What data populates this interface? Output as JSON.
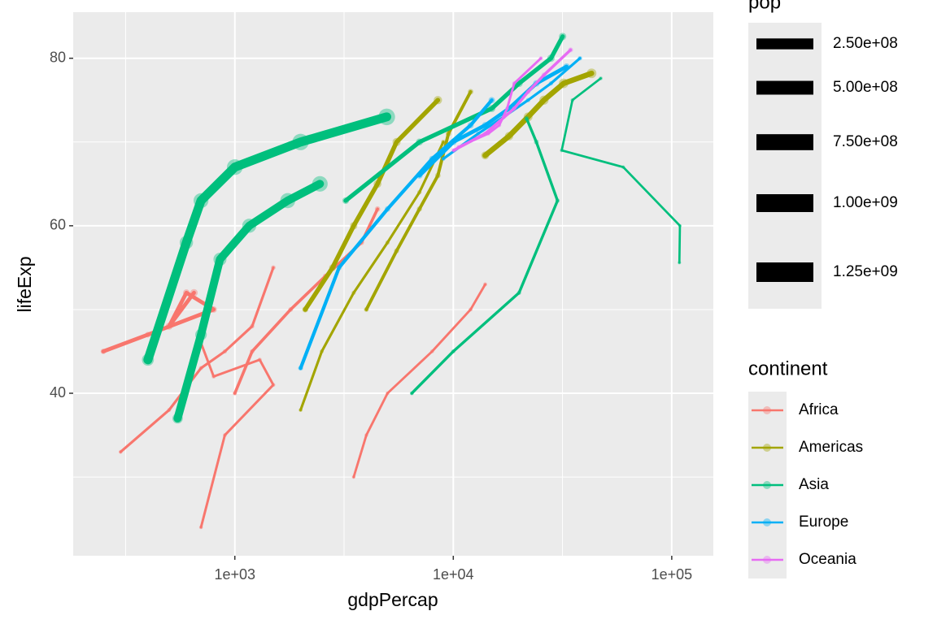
{
  "chart_data": {
    "type": "line",
    "x_label": "gdpPercap",
    "y_label": "lifeExp",
    "xlog": true,
    "grid": true,
    "xlim": [
      182,
      155000
    ],
    "ylim": [
      20.6,
      85.5
    ],
    "xticks": [
      {
        "value": 1000,
        "label": "1e+03"
      },
      {
        "value": 10000,
        "label": "1e+04"
      },
      {
        "value": 100000,
        "label": "1e+05"
      }
    ],
    "xminorticks": [
      316.23,
      3162.3,
      31623
    ],
    "yticks": [
      40,
      60,
      80
    ],
    "yminorticks": [
      30,
      50,
      70
    ],
    "legend_title": "continent",
    "size_legend": {
      "title": "pop",
      "breaks": [
        {
          "value": 250000000,
          "label": "2.50e+08"
        },
        {
          "value": 500000000,
          "label": "5.00e+08"
        },
        {
          "value": 750000000,
          "label": "7.50e+08"
        },
        {
          "value": 1000000000,
          "label": "1.00e+09"
        },
        {
          "value": 1250000000,
          "label": "1.25e+09"
        }
      ]
    },
    "series": [
      {
        "name": "Africa",
        "color": "#F8766D",
        "lines": [
          {
            "x": [
              300,
              500,
              700,
              900,
              1200,
              1500
            ],
            "y": [
              33,
              38,
              43,
              45,
              48,
              55
            ],
            "pop": [
              3000000,
              4000000,
              6000000,
              8000000,
              11000000,
              14000000
            ]
          },
          {
            "x": [
              1000,
              1200,
              1800,
              2600,
              3800,
              4500
            ],
            "y": [
              40,
              45,
              50,
              54,
              58,
              62
            ],
            "pop": [
              9000000,
              12000000,
              17000000,
              23000000,
              30000000,
              35000000
            ]
          },
          {
            "x": [
              700,
              900,
              1500,
              1300,
              800,
              700
            ],
            "y": [
              24,
              35,
              41,
              44,
              42,
              46
            ],
            "pop": [
              2000000,
              3000000,
              4000000,
              5000000,
              6000000,
              7000000
            ]
          },
          {
            "x": [
              3500,
              4000,
              5000,
              8000,
              12000,
              14000
            ],
            "y": [
              30,
              35,
              40,
              45,
              50,
              53
            ],
            "pop": [
              1000000,
              1500000,
              2000000,
              3000000,
              4000000,
              5000000
            ]
          },
          {
            "x": [
              250,
              400,
              800,
              600,
              500,
              650
            ],
            "y": [
              45,
              47,
              50,
              52,
              48,
              52
            ],
            "pop": [
              33000000,
              47000000,
              73000000,
              93000000,
              110000000,
              135000000
            ]
          }
        ]
      },
      {
        "name": "Americas",
        "color": "#A3A500",
        "lines": [
          {
            "x": [
              2000,
              2500,
              3500,
              5000,
              7000,
              9000
            ],
            "y": [
              38,
              45,
              52,
              58,
              64,
              70
            ],
            "pop": [
              3000000,
              4000000,
              6000000,
              8000000,
              10000000,
              12000000
            ]
          },
          {
            "x": [
              4000,
              5500,
              7000,
              8500,
              9500,
              12000
            ],
            "y": [
              50,
              57,
              62,
              66,
              71,
              76
            ],
            "pop": [
              18000000,
              24000000,
              30000000,
              35000000,
              38000000,
              40000000
            ]
          },
          {
            "x": [
              13990,
              18000,
              22000,
              26000,
              32000,
              42951
            ],
            "y": [
              68.4,
              70.7,
              73,
              75,
              77,
              78.2
            ],
            "pop": [
              157000000,
              198000000,
              232000000,
              260000000,
              287000000,
              301000000
            ]
          },
          {
            "x": [
              2100,
              2800,
              3500,
              4500,
              5500,
              8500
            ],
            "y": [
              50,
              55,
              60,
              65,
              70,
              75
            ],
            "pop": [
              56000000,
              88000000,
              128000000,
              155000000,
              180000000,
              190000000
            ]
          }
        ]
      },
      {
        "name": "Asia",
        "color": "#00BF7D",
        "lines": [
          {
            "x": [
              400,
              600,
              700,
              1000,
              2000,
              4959
            ],
            "y": [
              44,
              58,
              63,
              67,
              70,
              73
            ],
            "pop": [
              560000000,
              750000000,
              1000000000,
              1160000000,
              1280000000,
              1320000000
            ]
          },
          {
            "x": [
              547,
              700,
              855,
              1164,
              1746,
              2452
            ],
            "y": [
              37,
              47,
              56,
              60,
              63,
              65
            ],
            "pop": [
              370000000,
              510000000,
              710000000,
              870000000,
              1030000000,
              1110000000
            ]
          },
          {
            "x": [
              108382,
              109000,
              60000,
              31354,
              35110,
              47307
            ],
            "y": [
              55.6,
              60,
              67,
              69,
              75,
              77.6
            ],
            "pop": [
              160000,
              300000,
              600000,
              1400000,
              2000000,
              2500000
            ]
          },
          {
            "x": [
              3217,
              7000,
              15000,
              20000,
              28000,
              31656
            ],
            "y": [
              63,
              70,
              74,
              77,
              80,
              82.6
            ],
            "pop": [
              86000000,
              100000000,
              118000000,
              124000000,
              127000000,
              127000000
            ]
          },
          {
            "x": [
              6459,
              10000,
              20000,
              30000,
              24000,
              21655
            ],
            "y": [
              40,
              45,
              52,
              63,
              70,
              72.8
            ],
            "pop": [
              4000000,
              5600000,
              8000000,
              11000000,
              21000000,
              27000000
            ]
          }
        ]
      },
      {
        "name": "Europe",
        "color": "#00B0F6",
        "lines": [
          {
            "x": [
              2000,
              3000,
              5000,
              8000,
              12000,
              15000
            ],
            "y": [
              43,
              55,
              62,
              68,
              72,
              75
            ],
            "pop": [
              22000000,
              30000000,
              40000000,
              50000000,
              65000000,
              72000000
            ]
          },
          {
            "x": [
              9000,
              13000,
              17000,
              22000,
              28000,
              38000
            ],
            "y": [
              68,
              71,
              73,
              75,
              77,
              80
            ],
            "pop": [
              7000000,
              8000000,
              8500000,
              9000000,
              9500000,
              10000000
            ]
          },
          {
            "x": [
              7000,
              10000,
              14000,
              18000,
              24000,
              33000
            ],
            "y": [
              66,
              70,
              72,
              74,
              77,
              79
            ],
            "pop": [
              69000000,
              76000000,
              78000000,
              80000000,
              82000000,
              82000000
            ]
          }
        ]
      },
      {
        "name": "Oceania",
        "color": "#E76BF3",
        "lines": [
          {
            "x": [
              10040,
              14000,
              19000,
              22000,
              26000,
              34435
            ],
            "y": [
              69,
              71,
              74,
              76,
              78,
              81
            ],
            "pop": [
              8700000,
              11800000,
              15000000,
              17500000,
              19500000,
              20400000
            ]
          },
          {
            "x": [
              10557,
              14463,
              16233,
              17632,
              19000,
              25185
            ],
            "y": [
              69.4,
              71,
              72,
              74,
              77,
              80
            ],
            "pop": [
              1990000,
              2700000,
              3200000,
              3400000,
              3900000,
              4100000
            ]
          }
        ]
      }
    ]
  }
}
